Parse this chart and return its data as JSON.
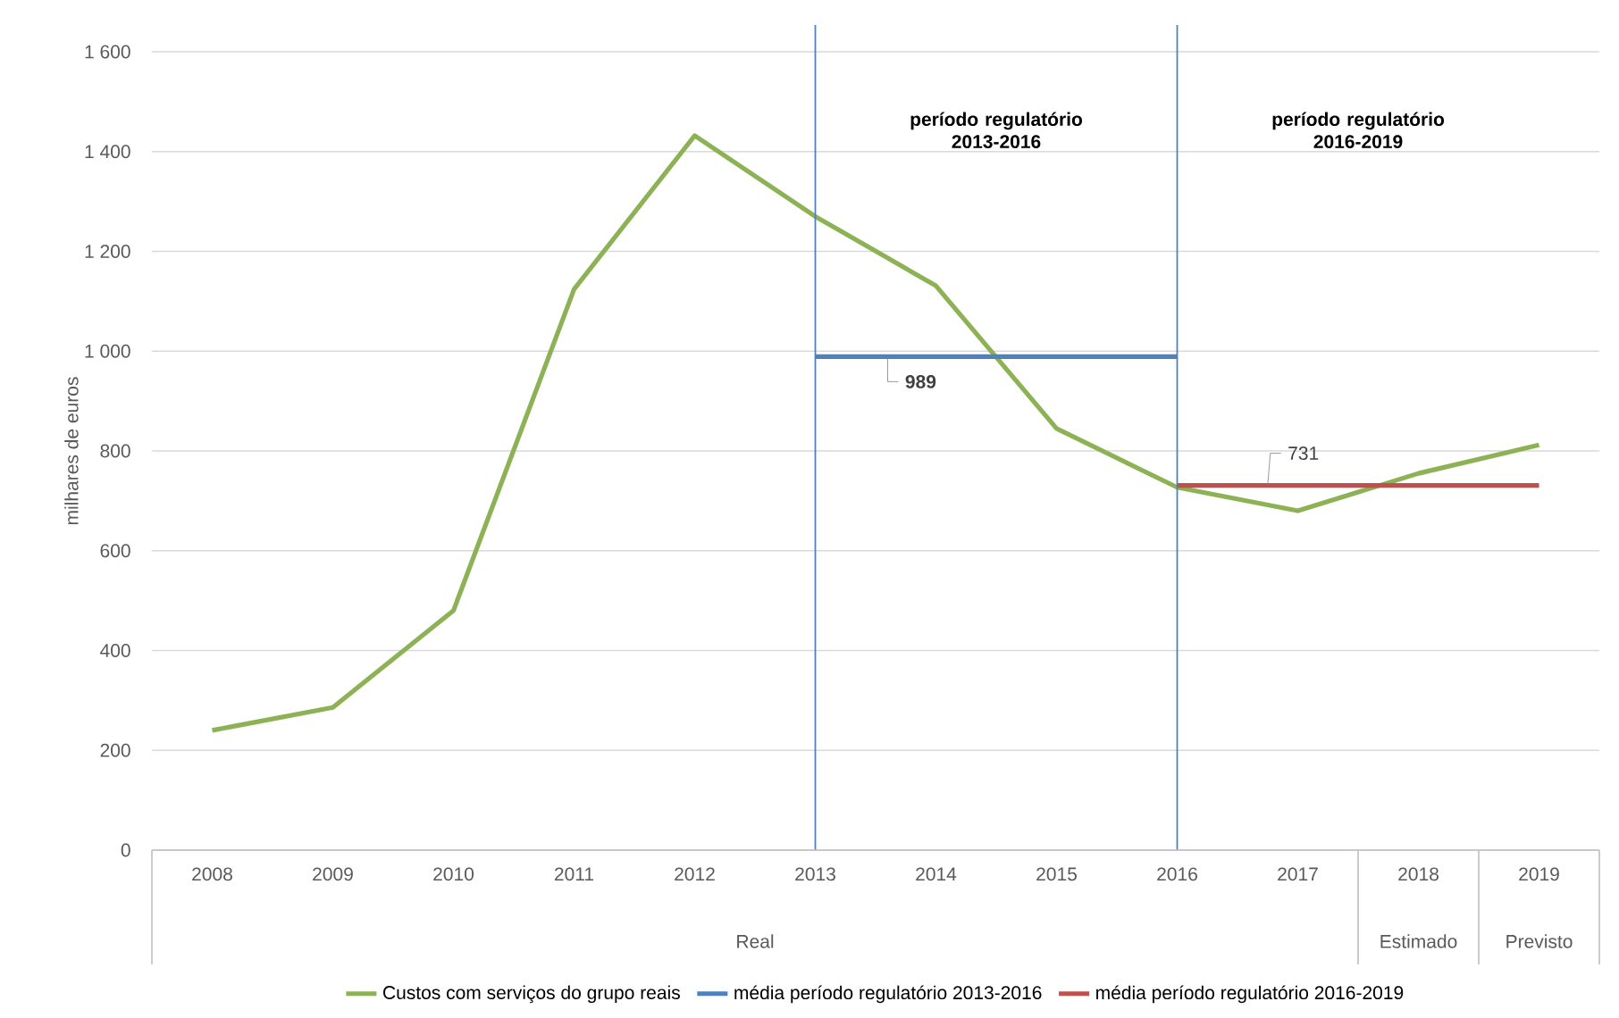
{
  "chart_data": {
    "type": "line",
    "categories": [
      "2008",
      "2009",
      "2010",
      "2011",
      "2012",
      "2013",
      "2014",
      "2015",
      "2016",
      "2017",
      "2018",
      "2019"
    ],
    "series": [
      {
        "name": "Custos com serviços do grupo reais",
        "color": "#8db255",
        "values": [
          240,
          286,
          480,
          1124,
          1432,
          1270,
          1131,
          845,
          727,
          680,
          755,
          812
        ]
      },
      {
        "name": "média período regulatório 2013-2016",
        "color": "#4f81bd",
        "values": [
          null,
          null,
          null,
          null,
          null,
          989,
          989,
          989,
          989,
          null,
          null,
          null
        ],
        "value_labels": [
          null,
          null,
          null,
          null,
          null,
          null,
          "989",
          null,
          null,
          null,
          null,
          null
        ]
      },
      {
        "name": "média período regulatório 2016-2019",
        "color": "#c0504d",
        "values": [
          null,
          null,
          null,
          null,
          null,
          null,
          null,
          null,
          731,
          731,
          731,
          731
        ],
        "value_labels": [
          null,
          null,
          null,
          null,
          null,
          null,
          null,
          null,
          null,
          "731",
          null,
          null
        ]
      }
    ],
    "ylabel": "milhares de euros",
    "ylim": [
      0,
      1600
    ],
    "yticks": [
      0,
      200,
      400,
      600,
      800,
      {
        "value": 1000,
        "label": "1 000"
      },
      {
        "value": 1200,
        "label": "1 200"
      },
      {
        "value": 1400,
        "label": "1 400"
      },
      {
        "value": 1600,
        "label": "1 600"
      }
    ],
    "grid": "y",
    "legend": "bottom",
    "marker": "none",
    "line_style": "solid",
    "ref_lines": [
      {
        "axis": "x",
        "value": "2013",
        "color": "#4f81bd"
      },
      {
        "axis": "x",
        "value": "2016",
        "color": "#4f81bd"
      }
    ],
    "annotations": [
      "período regulatório 2013-2016",
      "período regulatório 2016-2019",
      "Real",
      "Estimado",
      "Previsto"
    ]
  }
}
